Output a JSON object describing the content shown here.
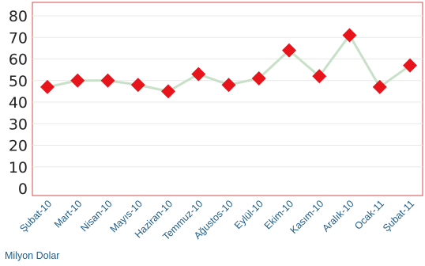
{
  "chart_data": {
    "type": "line",
    "unit_label": "Milyon Dolar",
    "categories": [
      "Şubat-10",
      "Mart-10",
      "Nisan-10",
      "Mayıs-10",
      "Haziran-10",
      "Temmuz-10",
      "Ağustos-10",
      "Eylül-10",
      "Ekim-10",
      "Kasım-10",
      "Aralık-10",
      "Ocak-11",
      "Şubat-11"
    ],
    "values": [
      47,
      50,
      50,
      48,
      45,
      53,
      48,
      51,
      64,
      52,
      71,
      47,
      57
    ],
    "ylim": [
      0,
      80
    ],
    "yticks": [
      0,
      10,
      20,
      30,
      40,
      50,
      60,
      70,
      80
    ],
    "grid": true,
    "colors": {
      "line": "#c8e0c8",
      "marker": "#e8141b",
      "frame": "#d84a4a",
      "grid": "#e8e8e8",
      "tick_label": "#1f5c87"
    }
  }
}
